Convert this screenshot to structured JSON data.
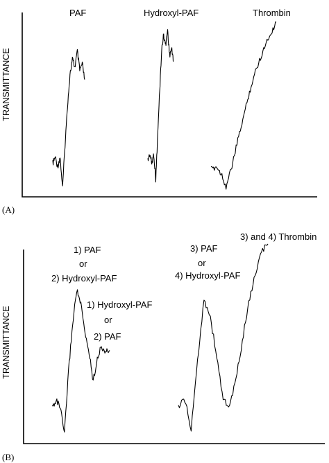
{
  "chart_data": [
    {
      "type": "line",
      "panel_label": "(A)",
      "ylabel": "TRANSMITTANCE",
      "xlabel": "",
      "annotations": [
        "PAF",
        "Hydroxyl-PAF",
        "Thrombin"
      ],
      "series": [
        {
          "name": "PAF",
          "x": [
            0,
            1,
            2,
            3,
            4,
            5,
            6,
            7,
            8,
            9,
            10,
            11,
            12,
            13
          ],
          "y": [
            0.18,
            0.22,
            0.16,
            0.22,
            0.02,
            0.3,
            0.55,
            0.75,
            0.85,
            0.8,
            0.9,
            0.78,
            0.82,
            0.72
          ]
        },
        {
          "name": "Hydroxyl-PAF",
          "x": [
            0,
            1,
            2,
            3,
            4,
            5,
            6,
            7,
            8,
            9,
            10,
            11,
            12,
            13
          ],
          "y": [
            0.16,
            0.2,
            0.14,
            0.2,
            0.04,
            0.32,
            0.6,
            0.85,
            0.95,
            0.88,
            0.98,
            0.82,
            0.86,
            0.78
          ]
        },
        {
          "name": "Thrombin",
          "x": [
            0,
            1,
            2,
            3,
            4,
            5,
            6,
            7,
            8,
            9,
            10,
            11,
            12,
            13
          ],
          "y": [
            0.12,
            0.14,
            0.1,
            0.02,
            0.12,
            0.25,
            0.38,
            0.5,
            0.62,
            0.72,
            0.8,
            0.88,
            0.94,
            1.0
          ]
        }
      ]
    },
    {
      "type": "line",
      "panel_label": "(B)",
      "ylabel": "TRANSMITTANCE",
      "xlabel": "",
      "annotations": [
        "1) PAF",
        "or",
        "2) Hydroxyl-PAF",
        "1) Hydroxyl-PAF",
        "or",
        "2) PAF",
        "3) PAF",
        "or",
        "4) Hydroxyl-PAF",
        "3) and 4) Thrombin"
      ],
      "series": [
        {
          "name": "1) PAF or 2) Hydroxyl-PAF, then 1) Hydroxyl-PAF or 2) PAF",
          "x": [
            0,
            1,
            2,
            3,
            4,
            5,
            6,
            7,
            8,
            9,
            10,
            11,
            12,
            13,
            14
          ],
          "y": [
            0.16,
            0.2,
            0.16,
            0.02,
            0.35,
            0.6,
            0.78,
            0.7,
            0.55,
            0.45,
            0.3,
            0.42,
            0.48,
            0.45,
            0.46
          ]
        },
        {
          "name": "3) PAF or 4) Hydroxyl-PAF, then 3) and 4) Thrombin",
          "x": [
            0,
            1,
            2,
            3,
            4,
            5,
            6,
            7,
            8,
            9,
            10,
            11,
            12,
            13,
            14
          ],
          "y": [
            0.16,
            0.2,
            0.04,
            0.4,
            0.72,
            0.62,
            0.42,
            0.2,
            0.16,
            0.3,
            0.5,
            0.7,
            0.84,
            0.96,
            1.0
          ]
        }
      ]
    }
  ]
}
